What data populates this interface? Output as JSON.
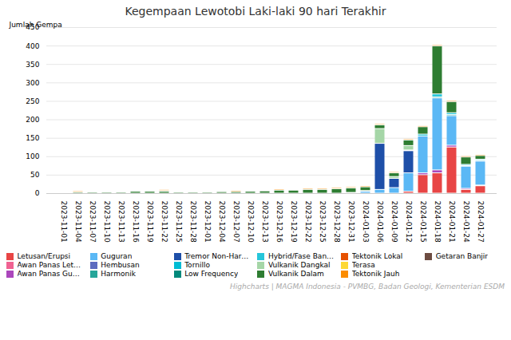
{
  "chart_data": {
    "type": "bar",
    "stacked": true,
    "title": "Kegempaan Lewotobi Laki-laki 90 hari Terakhir",
    "ylabel": "Jumlah Gempa",
    "caption": "Highcharts | MAGMA Indonesia - PVMBG, Badan Geologi, Kementerian ESDM",
    "ylim": [
      0,
      450
    ],
    "yticks": [
      0,
      50,
      100,
      150,
      200,
      250,
      300,
      350,
      400,
      450
    ],
    "grid": true,
    "legend": "bottom",
    "categories": [
      "2023-11-01",
      "2023-11-04",
      "2023-11-07",
      "2023-11-10",
      "2023-11-13",
      "2023-11-16",
      "2023-11-19",
      "2023-11-22",
      "2023-11-25",
      "2023-11-28",
      "2023-12-01",
      "2023-12-04",
      "2023-12-07",
      "2023-12-10",
      "2023-12-13",
      "2023-12-16",
      "2023-12-19",
      "2023-12-22",
      "2023-12-25",
      "2023-12-28",
      "2023-12-31",
      "2024-01-03",
      "2024-01-06",
      "2024-01-09",
      "2024-01-12",
      "2024-01-15",
      "2024-01-18",
      "2024-01-21",
      "2024-01-24",
      "2024-01-27"
    ],
    "series": [
      {
        "name": "Letusan/Erupsi",
        "color": "#e84545",
        "values": [
          0,
          0,
          0,
          0,
          0,
          0,
          0,
          0,
          0,
          0,
          0,
          0,
          0,
          0,
          0,
          0,
          0,
          0,
          0,
          0,
          0,
          0,
          0,
          0,
          5,
          50,
          55,
          125,
          10,
          20
        ]
      },
      {
        "name": "Awan Panas Letusan",
        "color": "#f06292",
        "values": [
          0,
          0,
          0,
          0,
          0,
          0,
          0,
          0,
          0,
          0,
          0,
          0,
          0,
          0,
          0,
          0,
          0,
          0,
          0,
          0,
          0,
          0,
          0,
          0,
          0,
          0,
          0,
          0,
          0,
          0
        ]
      },
      {
        "name": "Awan Panas Guguran",
        "color": "#ab47bc",
        "values": [
          0,
          0,
          0,
          0,
          0,
          0,
          0,
          0,
          0,
          0,
          0,
          0,
          0,
          0,
          0,
          0,
          0,
          0,
          0,
          0,
          0,
          0,
          0,
          0,
          0,
          5,
          8,
          5,
          3,
          2
        ]
      },
      {
        "name": "Guguran",
        "color": "#5bb8f5",
        "values": [
          0,
          0,
          0,
          0,
          0,
          0,
          0,
          0,
          0,
          0,
          0,
          0,
          0,
          0,
          0,
          0,
          0,
          0,
          0,
          0,
          2,
          5,
          10,
          15,
          50,
          100,
          195,
          80,
          60,
          65
        ]
      },
      {
        "name": "Hembusan",
        "color": "#5c6bc0",
        "values": [
          0,
          0,
          0,
          0,
          0,
          0,
          0,
          0,
          0,
          0,
          0,
          0,
          0,
          0,
          0,
          0,
          0,
          0,
          0,
          0,
          0,
          0,
          0,
          0,
          0,
          0,
          0,
          0,
          0,
          0
        ]
      },
      {
        "name": "Harmonik",
        "color": "#26a69a",
        "values": [
          0,
          0,
          0,
          0,
          0,
          0,
          0,
          0,
          0,
          0,
          0,
          0,
          0,
          0,
          0,
          0,
          0,
          0,
          0,
          0,
          0,
          0,
          0,
          0,
          0,
          0,
          3,
          3,
          2,
          2
        ]
      },
      {
        "name": "Tremor Non-Harmonik",
        "color": "#1e4fa8",
        "values": [
          0,
          0,
          0,
          0,
          0,
          0,
          0,
          0,
          0,
          0,
          0,
          0,
          0,
          0,
          0,
          0,
          0,
          0,
          0,
          0,
          0,
          2,
          125,
          25,
          60,
          0,
          0,
          0,
          0,
          0
        ]
      },
      {
        "name": "Tornillo",
        "color": "#00bcd4",
        "values": [
          0,
          0,
          0,
          0,
          0,
          0,
          0,
          0,
          0,
          0,
          0,
          0,
          0,
          0,
          0,
          0,
          0,
          0,
          0,
          0,
          0,
          0,
          0,
          0,
          0,
          0,
          0,
          0,
          0,
          0
        ]
      },
      {
        "name": "Low Frequency",
        "color": "#00897b",
        "values": [
          0,
          0,
          0,
          0,
          0,
          0,
          0,
          0,
          0,
          0,
          0,
          0,
          0,
          0,
          0,
          0,
          0,
          0,
          0,
          0,
          0,
          0,
          0,
          0,
          0,
          0,
          0,
          0,
          0,
          0
        ]
      },
      {
        "name": "Hybrid/Fase Banyak",
        "color": "#26c6da",
        "values": [
          0,
          0,
          0,
          0,
          0,
          0,
          0,
          0,
          0,
          0,
          0,
          0,
          0,
          0,
          0,
          0,
          0,
          0,
          0,
          0,
          0,
          0,
          0,
          0,
          2,
          5,
          8,
          5,
          3,
          3
        ]
      },
      {
        "name": "Vulkanik Dangkal",
        "color": "#a5d6a7",
        "values": [
          0,
          0,
          0,
          0,
          0,
          0,
          0,
          0,
          0,
          0,
          0,
          0,
          0,
          0,
          0,
          0,
          0,
          0,
          0,
          0,
          0,
          0,
          40,
          5,
          12,
          0,
          0,
          0,
          0,
          0
        ]
      },
      {
        "name": "Vulkanik Dalam",
        "color": "#2e7d32",
        "values": [
          2,
          3,
          3,
          3,
          3,
          5,
          5,
          5,
          3,
          3,
          3,
          4,
          4,
          5,
          6,
          8,
          8,
          10,
          10,
          12,
          12,
          10,
          10,
          10,
          15,
          20,
          130,
          30,
          20,
          10
        ]
      },
      {
        "name": "Tektonik Lokal",
        "color": "#e65100",
        "values": [
          0,
          0,
          0,
          0,
          0,
          0,
          0,
          0,
          0,
          0,
          0,
          0,
          0,
          0,
          0,
          0,
          0,
          0,
          0,
          0,
          0,
          0,
          0,
          0,
          0,
          0,
          0,
          0,
          0,
          0
        ]
      },
      {
        "name": "Terasa",
        "color": "#fdd835",
        "values": [
          0,
          0,
          0,
          0,
          0,
          0,
          2,
          2,
          0,
          2,
          0,
          0,
          0,
          0,
          0,
          0,
          0,
          0,
          0,
          0,
          0,
          0,
          0,
          0,
          0,
          0,
          0,
          0,
          0,
          0
        ]
      },
      {
        "name": "Tektonik Jauh",
        "color": "#fb8c00",
        "values": [
          2,
          3,
          2,
          2,
          2,
          2,
          2,
          3,
          2,
          2,
          2,
          2,
          3,
          2,
          2,
          3,
          2,
          3,
          3,
          3,
          3,
          3,
          3,
          3,
          3,
          3,
          3,
          3,
          3,
          3
        ]
      },
      {
        "name": "Getaran Banjir",
        "color": "#6d4c41",
        "values": [
          0,
          0,
          0,
          0,
          0,
          0,
          0,
          0,
          0,
          0,
          0,
          0,
          0,
          0,
          0,
          0,
          0,
          0,
          0,
          0,
          0,
          0,
          0,
          0,
          0,
          0,
          0,
          0,
          0,
          0
        ]
      }
    ]
  }
}
